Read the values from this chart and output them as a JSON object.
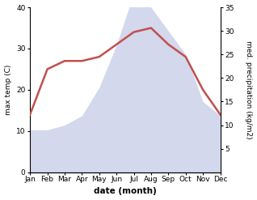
{
  "months": [
    "Jan",
    "Feb",
    "Mar",
    "Apr",
    "May",
    "Jun",
    "Jul",
    "Aug",
    "Sep",
    "Oct",
    "Nov",
    "Dec"
  ],
  "max_temp": [
    14,
    25,
    27,
    27,
    28,
    31,
    34,
    35,
    31,
    28,
    20,
    14
  ],
  "precipitation": [
    9,
    9,
    10,
    12,
    18,
    27,
    38,
    35,
    30,
    25,
    15,
    12
  ],
  "temp_color": "#c0504d",
  "precip_fill_color": "#c5cce8",
  "precip_fill_alpha": 0.75,
  "temp_ylim": [
    0,
    40
  ],
  "precip_ylim": [
    0,
    35
  ],
  "temp_yticks": [
    0,
    10,
    20,
    30,
    40
  ],
  "precip_yticks": [
    5,
    10,
    15,
    20,
    25,
    30,
    35
  ],
  "xlabel": "date (month)",
  "ylabel_left": "max temp (C)",
  "ylabel_right": "med. precipitation (kg/m2)",
  "bg_color": "#ffffff",
  "figsize": [
    3.18,
    2.47
  ],
  "dpi": 100
}
